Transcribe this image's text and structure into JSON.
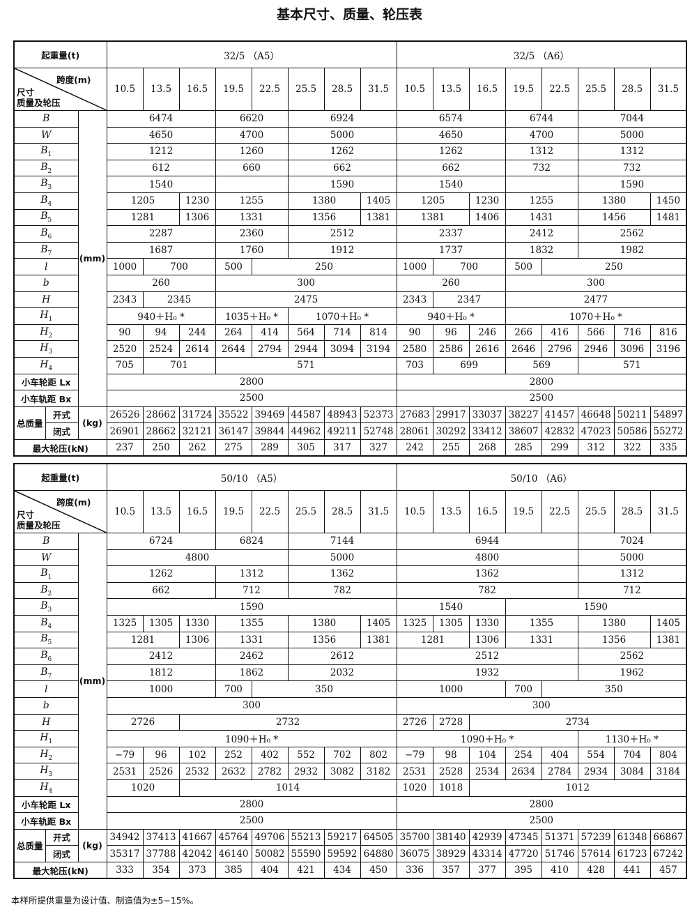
{
  "title": "基本尺寸、质量、轮压表",
  "labels": {
    "load": "起重量(t)",
    "span": "跨度(m)",
    "dims_line1": "尺寸",
    "dims_line2": "质量及轮压",
    "unit_mm": "(mm)",
    "unit_kg": "(kg)",
    "total_mass": "总质量",
    "open": "开式",
    "closed": "闭式",
    "max_wheel": "最大轮压(kN)",
    "trolley_wheelbase": "小车轮距 Lx",
    "trolley_gauge": "小车轨距 Bx"
  },
  "spans": [
    "10.5",
    "13.5",
    "16.5",
    "19.5",
    "22.5",
    "25.5",
    "28.5",
    "31.5",
    "10.5",
    "13.5",
    "16.5",
    "19.5",
    "22.5",
    "25.5",
    "28.5",
    "31.5"
  ],
  "sections": [
    {
      "group_a": "32/5 （A5）",
      "group_b": "32/5 （A6）",
      "dim_rows": [
        {
          "sym": "B",
          "sub": "",
          "values": [
            "6474",
            "6620",
            "6924",
            "6574",
            "6744",
            "7044"
          ]
        },
        {
          "sym": "W",
          "sub": "",
          "values": [
            "4650",
            "4700",
            "5000",
            "4650",
            "4700",
            "5000"
          ]
        },
        {
          "sym": "B",
          "sub": "1",
          "values": [
            "1212",
            "1260",
            "1262",
            "1262",
            "1312",
            "1312"
          ]
        },
        {
          "sym": "B",
          "sub": "2",
          "values": [
            "612",
            "660",
            "662",
            "662",
            "732",
            "732"
          ]
        },
        {
          "sym": "B",
          "sub": "3",
          "values": [
            "1540",
            "",
            "1590",
            "1540",
            "",
            "1590"
          ]
        },
        {
          "sym": "B",
          "sub": "4",
          "values": [
            "1205",
            "1230",
            "1255",
            "1380",
            "1405",
            "1205",
            "1230",
            "1255",
            "1380",
            "1450"
          ]
        },
        {
          "sym": "B",
          "sub": "5",
          "values": [
            "1281",
            "1306",
            "1331",
            "1356",
            "1381",
            "1381",
            "1406",
            "1431",
            "1456",
            "1481"
          ]
        },
        {
          "sym": "B",
          "sub": "6",
          "values": [
            "2287",
            "2360",
            "2512",
            "2337",
            "2412",
            "2562"
          ]
        },
        {
          "sym": "B",
          "sub": "7",
          "values": [
            "1687",
            "1760",
            "1912",
            "1737",
            "1832",
            "1982"
          ]
        },
        {
          "sym": "l",
          "sub": "",
          "values": [
            "1000",
            "700",
            "500",
            "250",
            "1000",
            "700",
            "500",
            "250"
          ]
        },
        {
          "sym": "b",
          "sub": "",
          "values": [
            "260",
            "300",
            "260",
            "300"
          ]
        },
        {
          "sym": "H",
          "sub": "",
          "values": [
            "2343",
            "2345",
            "2475",
            "2343",
            "2347",
            "2477"
          ]
        },
        {
          "sym": "H",
          "sub": "1",
          "values": [
            "940＋H₀ *",
            "1035＋H₀ *",
            "1070＋H₀ *",
            "940＋H₀ *",
            "1070＋H₀ *"
          ]
        },
        {
          "sym": "H",
          "sub": "2",
          "values": [
            "90",
            "94",
            "244",
            "264",
            "414",
            "564",
            "714",
            "814",
            "90",
            "96",
            "246",
            "266",
            "416",
            "566",
            "716",
            "816"
          ]
        },
        {
          "sym": "H",
          "sub": "3",
          "values": [
            "2520",
            "2524",
            "2614",
            "2644",
            "2794",
            "2944",
            "3094",
            "3194",
            "2580",
            "2586",
            "2616",
            "2646",
            "2796",
            "2946",
            "3096",
            "3196"
          ]
        },
        {
          "sym": "H",
          "sub": "4",
          "values": [
            "705",
            "701",
            "571",
            "703",
            "699",
            "569",
            "571"
          ]
        }
      ],
      "lx": [
        "2800",
        "2800"
      ],
      "bx": [
        "2500",
        "2500"
      ],
      "mass_open": [
        "26526",
        "28662",
        "31724",
        "35522",
        "39469",
        "44587",
        "48943",
        "52373",
        "27683",
        "29917",
        "33037",
        "38227",
        "41457",
        "46648",
        "50211",
        "54897"
      ],
      "mass_closed": [
        "26901",
        "28662",
        "32121",
        "36147",
        "39844",
        "44962",
        "49211",
        "52748",
        "28061",
        "30292",
        "33412",
        "38607",
        "42832",
        "47023",
        "50586",
        "55272"
      ],
      "max_wheel": [
        "237",
        "250",
        "262",
        "275",
        "289",
        "305",
        "317",
        "327",
        "242",
        "255",
        "268",
        "285",
        "299",
        "312",
        "322",
        "335"
      ]
    },
    {
      "group_a": "50/10 （A5）",
      "group_b": "50/10 （A6）",
      "dim_rows": [
        {
          "sym": "B",
          "sub": "",
          "values": [
            "6724",
            "6824",
            "7144",
            "6944",
            "7024"
          ]
        },
        {
          "sym": "W",
          "sub": "",
          "values": [
            "4800",
            "5000",
            "4800",
            "5000"
          ]
        },
        {
          "sym": "B",
          "sub": "1",
          "values": [
            "1262",
            "1312",
            "1362",
            "1362",
            "1312"
          ]
        },
        {
          "sym": "B",
          "sub": "2",
          "values": [
            "662",
            "712",
            "782",
            "782",
            "712"
          ]
        },
        {
          "sym": "B",
          "sub": "3",
          "values": [
            "1590",
            "1540",
            "1590"
          ]
        },
        {
          "sym": "B",
          "sub": "4",
          "values": [
            "1325",
            "1305",
            "1330",
            "1355",
            "1380",
            "1405",
            "1325",
            "1305",
            "1330",
            "1355",
            "1380",
            "1405"
          ]
        },
        {
          "sym": "B",
          "sub": "5",
          "values": [
            "1281",
            "1306",
            "1331",
            "1356",
            "1381",
            "1281",
            "1306",
            "1331",
            "1356",
            "1381"
          ]
        },
        {
          "sym": "B",
          "sub": "6",
          "values": [
            "2412",
            "2462",
            "2612",
            "2512",
            "2562"
          ]
        },
        {
          "sym": "B",
          "sub": "7",
          "values": [
            "1812",
            "1862",
            "2032",
            "1932",
            "1962"
          ]
        },
        {
          "sym": "l",
          "sub": "",
          "values": [
            "1000",
            "700",
            "350",
            "1000",
            "700",
            "350"
          ]
        },
        {
          "sym": "b",
          "sub": "",
          "values": [
            "300",
            "300"
          ]
        },
        {
          "sym": "H",
          "sub": "",
          "values": [
            "2726",
            "2732",
            "2726",
            "2728",
            "2734"
          ]
        },
        {
          "sym": "H",
          "sub": "1",
          "values": [
            "1090＋H₀ *",
            "1090＋H₀ *",
            "1130＋H₀ *"
          ]
        },
        {
          "sym": "H",
          "sub": "2",
          "values": [
            "−79",
            "96",
            "102",
            "252",
            "402",
            "552",
            "702",
            "802",
            "−79",
            "98",
            "104",
            "254",
            "404",
            "554",
            "704",
            "804"
          ]
        },
        {
          "sym": "H",
          "sub": "3",
          "values": [
            "2531",
            "2526",
            "2532",
            "2632",
            "2782",
            "2932",
            "3082",
            "3182",
            "2531",
            "2528",
            "2534",
            "2634",
            "2784",
            "2934",
            "3084",
            "3184"
          ]
        },
        {
          "sym": "H",
          "sub": "4",
          "values": [
            "1020",
            "1014",
            "1020",
            "1018",
            "1012"
          ]
        }
      ],
      "lx": [
        "2800",
        "2800"
      ],
      "bx": [
        "2500",
        "2500"
      ],
      "mass_open": [
        "34942",
        "37413",
        "41667",
        "45764",
        "49706",
        "55213",
        "59217",
        "64505",
        "35700",
        "38140",
        "42939",
        "47345",
        "51371",
        "57239",
        "61348",
        "66867"
      ],
      "mass_closed": [
        "35317",
        "37788",
        "42042",
        "46140",
        "50082",
        "55590",
        "59592",
        "64880",
        "36075",
        "38929",
        "43314",
        "47720",
        "51746",
        "57614",
        "61723",
        "67242"
      ],
      "max_wheel": [
        "333",
        "354",
        "373",
        "385",
        "404",
        "421",
        "434",
        "450",
        "336",
        "357",
        "377",
        "395",
        "410",
        "428",
        "441",
        "457"
      ]
    }
  ],
  "footnote": "本样所提供重量为设计值、制造值为±5−15%。"
}
